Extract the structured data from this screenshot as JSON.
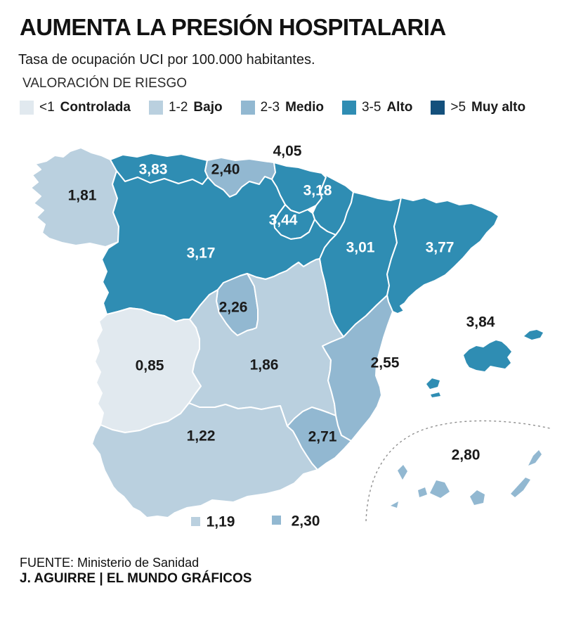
{
  "header": {
    "title": "AUMENTA LA PRESIÓN HOSPITALARIA",
    "subtitle": "Tasa de ocupación UCI por 100.000 habitantes.",
    "legend_title": "VALORACIÓN DE RIESGO"
  },
  "chart_data": {
    "type": "choropleth_map",
    "geography": "Spain autonomous communities",
    "metric": "Tasa de ocupación UCI por 100.000 habitantes",
    "risk_levels": [
      {
        "key": "controlada",
        "range": "<1",
        "label": "Controlada",
        "color": "#E1E9EF"
      },
      {
        "key": "bajo",
        "range": "1-2",
        "label": "Bajo",
        "color": "#BAD0DF"
      },
      {
        "key": "medio",
        "range": "2-3",
        "label": "Medio",
        "color": "#92B8D1"
      },
      {
        "key": "alto",
        "range": "3-5",
        "label": "Alto",
        "color": "#2F8DB3"
      },
      {
        "key": "muy_alto",
        "range": ">5",
        "label": "Muy alto",
        "color": "#14507C"
      }
    ],
    "regions": [
      {
        "key": "galicia",
        "name": "Galicia",
        "value": "1,81",
        "value_num": 1.81,
        "risk": "bajo"
      },
      {
        "key": "asturias",
        "name": "Asturias",
        "value": "3,83",
        "value_num": 3.83,
        "risk": "alto"
      },
      {
        "key": "cantabria",
        "name": "Cantabria",
        "value": "2,40",
        "value_num": 2.4,
        "risk": "medio"
      },
      {
        "key": "pais_vasco",
        "name": "País Vasco",
        "value": "4,05",
        "value_num": 4.05,
        "risk": "alto"
      },
      {
        "key": "navarra",
        "name": "Navarra",
        "value": "3,18",
        "value_num": 3.18,
        "risk": "alto"
      },
      {
        "key": "la_rioja",
        "name": "La Rioja",
        "value": "3,44",
        "value_num": 3.44,
        "risk": "alto"
      },
      {
        "key": "castilla_y_leon",
        "name": "Castilla y León",
        "value": "3,17",
        "value_num": 3.17,
        "risk": "alto"
      },
      {
        "key": "aragon",
        "name": "Aragón",
        "value": "3,01",
        "value_num": 3.01,
        "risk": "alto"
      },
      {
        "key": "cataluna",
        "name": "Cataluña",
        "value": "3,77",
        "value_num": 3.77,
        "risk": "alto"
      },
      {
        "key": "madrid",
        "name": "Madrid",
        "value": "2,26",
        "value_num": 2.26,
        "risk": "medio"
      },
      {
        "key": "castilla_la_mancha",
        "name": "Castilla-La Mancha",
        "value": "1,86",
        "value_num": 1.86,
        "risk": "bajo"
      },
      {
        "key": "extremadura",
        "name": "Extremadura",
        "value": "0,85",
        "value_num": 0.85,
        "risk": "controlada"
      },
      {
        "key": "c_valenciana",
        "name": "Comunidad Valenciana",
        "value": "2,55",
        "value_num": 2.55,
        "risk": "medio"
      },
      {
        "key": "murcia",
        "name": "Murcia",
        "value": "2,71",
        "value_num": 2.71,
        "risk": "medio"
      },
      {
        "key": "andalucia",
        "name": "Andalucía",
        "value": "1,22",
        "value_num": 1.22,
        "risk": "bajo"
      },
      {
        "key": "baleares",
        "name": "Baleares",
        "value": "3,84",
        "value_num": 3.84,
        "risk": "alto"
      },
      {
        "key": "canarias",
        "name": "Canarias",
        "value": "2,80",
        "value_num": 2.8,
        "risk": "medio"
      },
      {
        "key": "ceuta",
        "name": "Ceuta",
        "value": "1,19",
        "value_num": 1.19,
        "risk": "bajo"
      },
      {
        "key": "melilla",
        "name": "Melilla",
        "value": "2,30",
        "value_num": 2.3,
        "risk": "medio"
      }
    ]
  },
  "footer": {
    "source": "FUENTE: Ministerio de Sanidad",
    "credit": "J. AGUIRRE | EL MUNDO GRÁFICOS"
  }
}
